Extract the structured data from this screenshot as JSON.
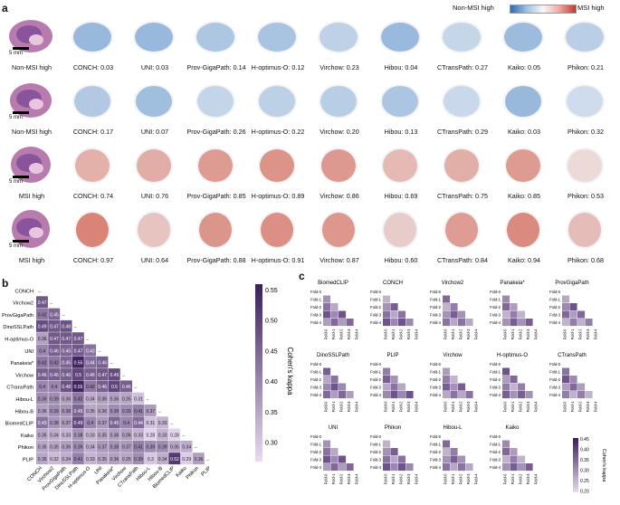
{
  "panel_letters": {
    "a": "a",
    "b": "b",
    "c": "c"
  },
  "colorbar": {
    "left": "Non-MSI high",
    "right": "MSI high"
  },
  "scale_bars": [
    "5 mm",
    "5 mm",
    "5 mm",
    "5 mm"
  ],
  "rows": [
    {
      "label": "Non-MSI high",
      "items": [
        {
          "model": "CONCH",
          "value": "0.03"
        },
        {
          "model": "UNI",
          "value": "0.03"
        },
        {
          "model": "Prov-GigaPath",
          "value": "0.14"
        },
        {
          "model": "H-optimus-O",
          "value": "0.12"
        },
        {
          "model": "Virchow",
          "value": "0.23"
        },
        {
          "model": "Hibou",
          "value": "0.04"
        },
        {
          "model": "CTransPath",
          "value": "0.27"
        },
        {
          "model": "Kaiko",
          "value": "0.05"
        },
        {
          "model": "Phikon",
          "value": "0.21"
        }
      ]
    },
    {
      "label": "Non-MSI high",
      "items": [
        {
          "model": "CONCH",
          "value": "0.17"
        },
        {
          "model": "UNI",
          "value": "0.07"
        },
        {
          "model": "Prov-GigaPath",
          "value": "0.26"
        },
        {
          "model": "H-optimus-O",
          "value": "0.22"
        },
        {
          "model": "Virchow",
          "value": "0.20"
        },
        {
          "model": "Hibou",
          "value": "0.13"
        },
        {
          "model": "CTransPath",
          "value": "0.29"
        },
        {
          "model": "Kaiko",
          "value": "0.03"
        },
        {
          "model": "Phikon",
          "value": "0.32"
        }
      ]
    },
    {
      "label": "MSI high",
      "items": [
        {
          "model": "CONCH",
          "value": "0.74"
        },
        {
          "model": "UNI",
          "value": "0.76"
        },
        {
          "model": "Prov-GigaPath",
          "value": "0.85"
        },
        {
          "model": "H-optimus-O",
          "value": "0.89"
        },
        {
          "model": "Virchow",
          "value": "0.86"
        },
        {
          "model": "Hibou",
          "value": "0.69"
        },
        {
          "model": "CTransPath",
          "value": "0.75"
        },
        {
          "model": "Kaiko",
          "value": "0.85"
        },
        {
          "model": "Phikon",
          "value": "0.53"
        }
      ]
    },
    {
      "label": "MSI high",
      "items": [
        {
          "model": "CONCH",
          "value": "0.97"
        },
        {
          "model": "UNI",
          "value": "0.64"
        },
        {
          "model": "Prov-GigaPath",
          "value": "0.88"
        },
        {
          "model": "H-optimus-O",
          "value": "0.91"
        },
        {
          "model": "Virchow",
          "value": "0.87"
        },
        {
          "model": "Hibou",
          "value": "0.60"
        },
        {
          "model": "CTransPath",
          "value": "0.84"
        },
        {
          "model": "Kaiko",
          "value": "0.94"
        },
        {
          "model": "Phikon",
          "value": "0.68"
        }
      ]
    }
  ],
  "chart_data": {
    "type": "heatmap",
    "labels": [
      "CONCH",
      "Virchow2",
      "ProvGigaPath",
      "DinoSSLPath",
      "H-optimus-O",
      "UNI",
      "Panakeia*",
      "Virchow",
      "CTransPath",
      "Hibou-L",
      "Hibou-B",
      "BiomedCLIP",
      "Kaiko",
      "Phikon",
      "PLIP"
    ],
    "lower_triangle": [
      [],
      [
        0.47
      ],
      [
        0.42,
        0.45
      ],
      [
        0.49,
        0.47,
        0.48
      ],
      [
        0.36,
        0.47,
        0.47,
        0.47
      ],
      [
        0.4,
        0.46,
        0.45,
        0.47,
        0.43
      ],
      [
        0.42,
        0.42,
        0.45,
        0.55,
        0.44,
        0.46
      ],
      [
        0.46,
        0.46,
        0.46,
        0.5,
        0.46,
        0.47,
        0.49
      ],
      [
        0.4,
        0.4,
        0.48,
        0.55,
        0.42,
        0.46,
        0.5,
        0.46
      ],
      [
        0.39,
        0.39,
        0.36,
        0.42,
        0.34,
        0.36,
        0.36,
        0.35,
        0.31
      ],
      [
        0.36,
        0.39,
        0.38,
        0.45,
        0.35,
        0.36,
        0.39,
        0.39,
        0.41,
        0.37
      ],
      [
        0.43,
        0.38,
        0.37,
        0.49,
        0.4,
        0.37,
        0.45,
        0.4,
        0.44,
        0.31,
        0.33
      ],
      [
        0.35,
        0.34,
        0.33,
        0.38,
        0.33,
        0.35,
        0.36,
        0.36,
        0.33,
        0.28,
        0.33,
        0.28
      ],
      [
        0.35,
        0.35,
        0.36,
        0.39,
        0.34,
        0.37,
        0.38,
        0.37,
        0.41,
        0.39,
        0.39,
        0.35,
        0.34
      ],
      [
        0.35,
        0.32,
        0.34,
        0.41,
        0.33,
        0.35,
        0.36,
        0.35,
        0.39,
        0.3,
        0.34,
        0.52,
        0.29,
        0.36
      ]
    ],
    "colorbar_label": "Cohen's kappa",
    "colorbar_ticks": [
      0.55,
      0.5,
      0.45,
      0.4,
      0.35,
      0.3
    ],
    "range": [
      0.27,
      0.56
    ]
  },
  "panel_c": {
    "colorbar_label": "Cohen's kappa",
    "colorbar_ticks": [
      "0.45",
      "0.40",
      "0.35",
      "0.30",
      "0.25",
      "0.20"
    ],
    "fold_labels": [
      "Fold-0",
      "Fold-1",
      "Fold-2",
      "Fold-3",
      "Fold-4"
    ],
    "minis": [
      "BiomedCLIP",
      "CONCH",
      "Virchow2",
      "Panakeia*",
      "ProvGigaPath",
      "DinoSSLPath",
      "PLIP",
      "Virchow",
      "H-optimus-O",
      "CTransPath",
      "UNI",
      "Phikon",
      "Hibou-L",
      "Kaiko"
    ]
  },
  "colors": {
    "blue": "#3a73b8",
    "red": "#c0392b",
    "purple_dark": "#3b1f5c",
    "purple_light": "#d9c8e6"
  }
}
